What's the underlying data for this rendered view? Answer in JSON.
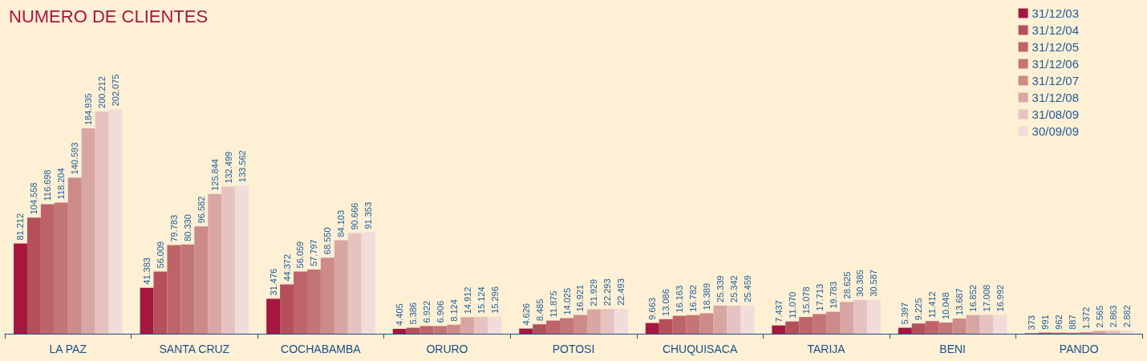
{
  "chart_data": {
    "type": "bar",
    "title": "NUMERO DE CLIENTES",
    "categories": [
      "LA PAZ",
      "SANTA CRUZ",
      "COCHABAMBA",
      "ORURO",
      "POTOSI",
      "CHUQUISACA",
      "TARIJA",
      "BENI",
      "PANDO"
    ],
    "legend": "top right",
    "tick_labels": "x",
    "series": [
      {
        "name": "31/12/03",
        "color": "#a5173f",
        "values": [
          81212,
          41383,
          31476,
          4405,
          4626,
          9663,
          7437,
          5397,
          373
        ],
        "value_labels": [
          "81.212",
          "41.383",
          "31.476",
          "4.405",
          "4.626",
          "9.663",
          "7.437",
          "5.397",
          "373"
        ]
      },
      {
        "name": "31/12/04",
        "color": "#b5505a",
        "values": [
          104558,
          56009,
          44372,
          5386,
          8485,
          13086,
          11070,
          9225,
          991
        ],
        "value_labels": [
          "104.558",
          "56.009",
          "44.372",
          "5.386",
          "8.485",
          "13.086",
          "11.070",
          "9.225",
          "991"
        ]
      },
      {
        "name": "31/12/05",
        "color": "#be6468",
        "values": [
          116698,
          79783,
          56059,
          6922,
          11875,
          16163,
          15078,
          11412,
          962
        ],
        "value_labels": [
          "116.698",
          "79.783",
          "56.059",
          "6.922",
          "11.875",
          "16.163",
          "15.078",
          "11.412",
          "962"
        ]
      },
      {
        "name": "31/12/06",
        "color": "#c47575",
        "values": [
          118204,
          80330,
          57797,
          6906,
          14025,
          16782,
          17713,
          10048,
          887
        ],
        "value_labels": [
          "118.204",
          "80.330",
          "57.797",
          "6.906",
          "14.025",
          "16.782",
          "17.713",
          "10.048",
          "887"
        ]
      },
      {
        "name": "31/12/07",
        "color": "#cc8a88",
        "values": [
          140593,
          96582,
          68550,
          8124,
          16921,
          18389,
          19783,
          13687,
          1372
        ],
        "value_labels": [
          "140.593",
          "96.582",
          "68.550",
          "8.124",
          "16.921",
          "18.389",
          "19.783",
          "13.687",
          "1.372"
        ]
      },
      {
        "name": "31/12/08",
        "color": "#d8a6a3",
        "values": [
          184935,
          125844,
          84103,
          14912,
          21929,
          25339,
          28625,
          16852,
          2565
        ],
        "value_labels": [
          "184.935",
          "125.844",
          "84.103",
          "14.912",
          "21.929",
          "25.339",
          "28.625",
          "16.852",
          "2.565"
        ]
      },
      {
        "name": "31/08/09",
        "color": "#e6c3c0",
        "values": [
          200212,
          132499,
          90666,
          15124,
          22293,
          25342,
          30385,
          17008,
          2863
        ],
        "value_labels": [
          "200.212",
          "132.499",
          "90.666",
          "15.124",
          "22.293",
          "25.342",
          "30.385",
          "17.008",
          "2.863"
        ]
      },
      {
        "name": "30/09/09",
        "color": "#f2dcda",
        "values": [
          202075,
          133562,
          91353,
          15296,
          22493,
          25459,
          30587,
          16992,
          2882
        ],
        "value_labels": [
          "202.075",
          "133.562",
          "91.353",
          "15.296",
          "22.493",
          "25.459",
          "30.587",
          "16.992",
          "2.882"
        ]
      }
    ]
  }
}
